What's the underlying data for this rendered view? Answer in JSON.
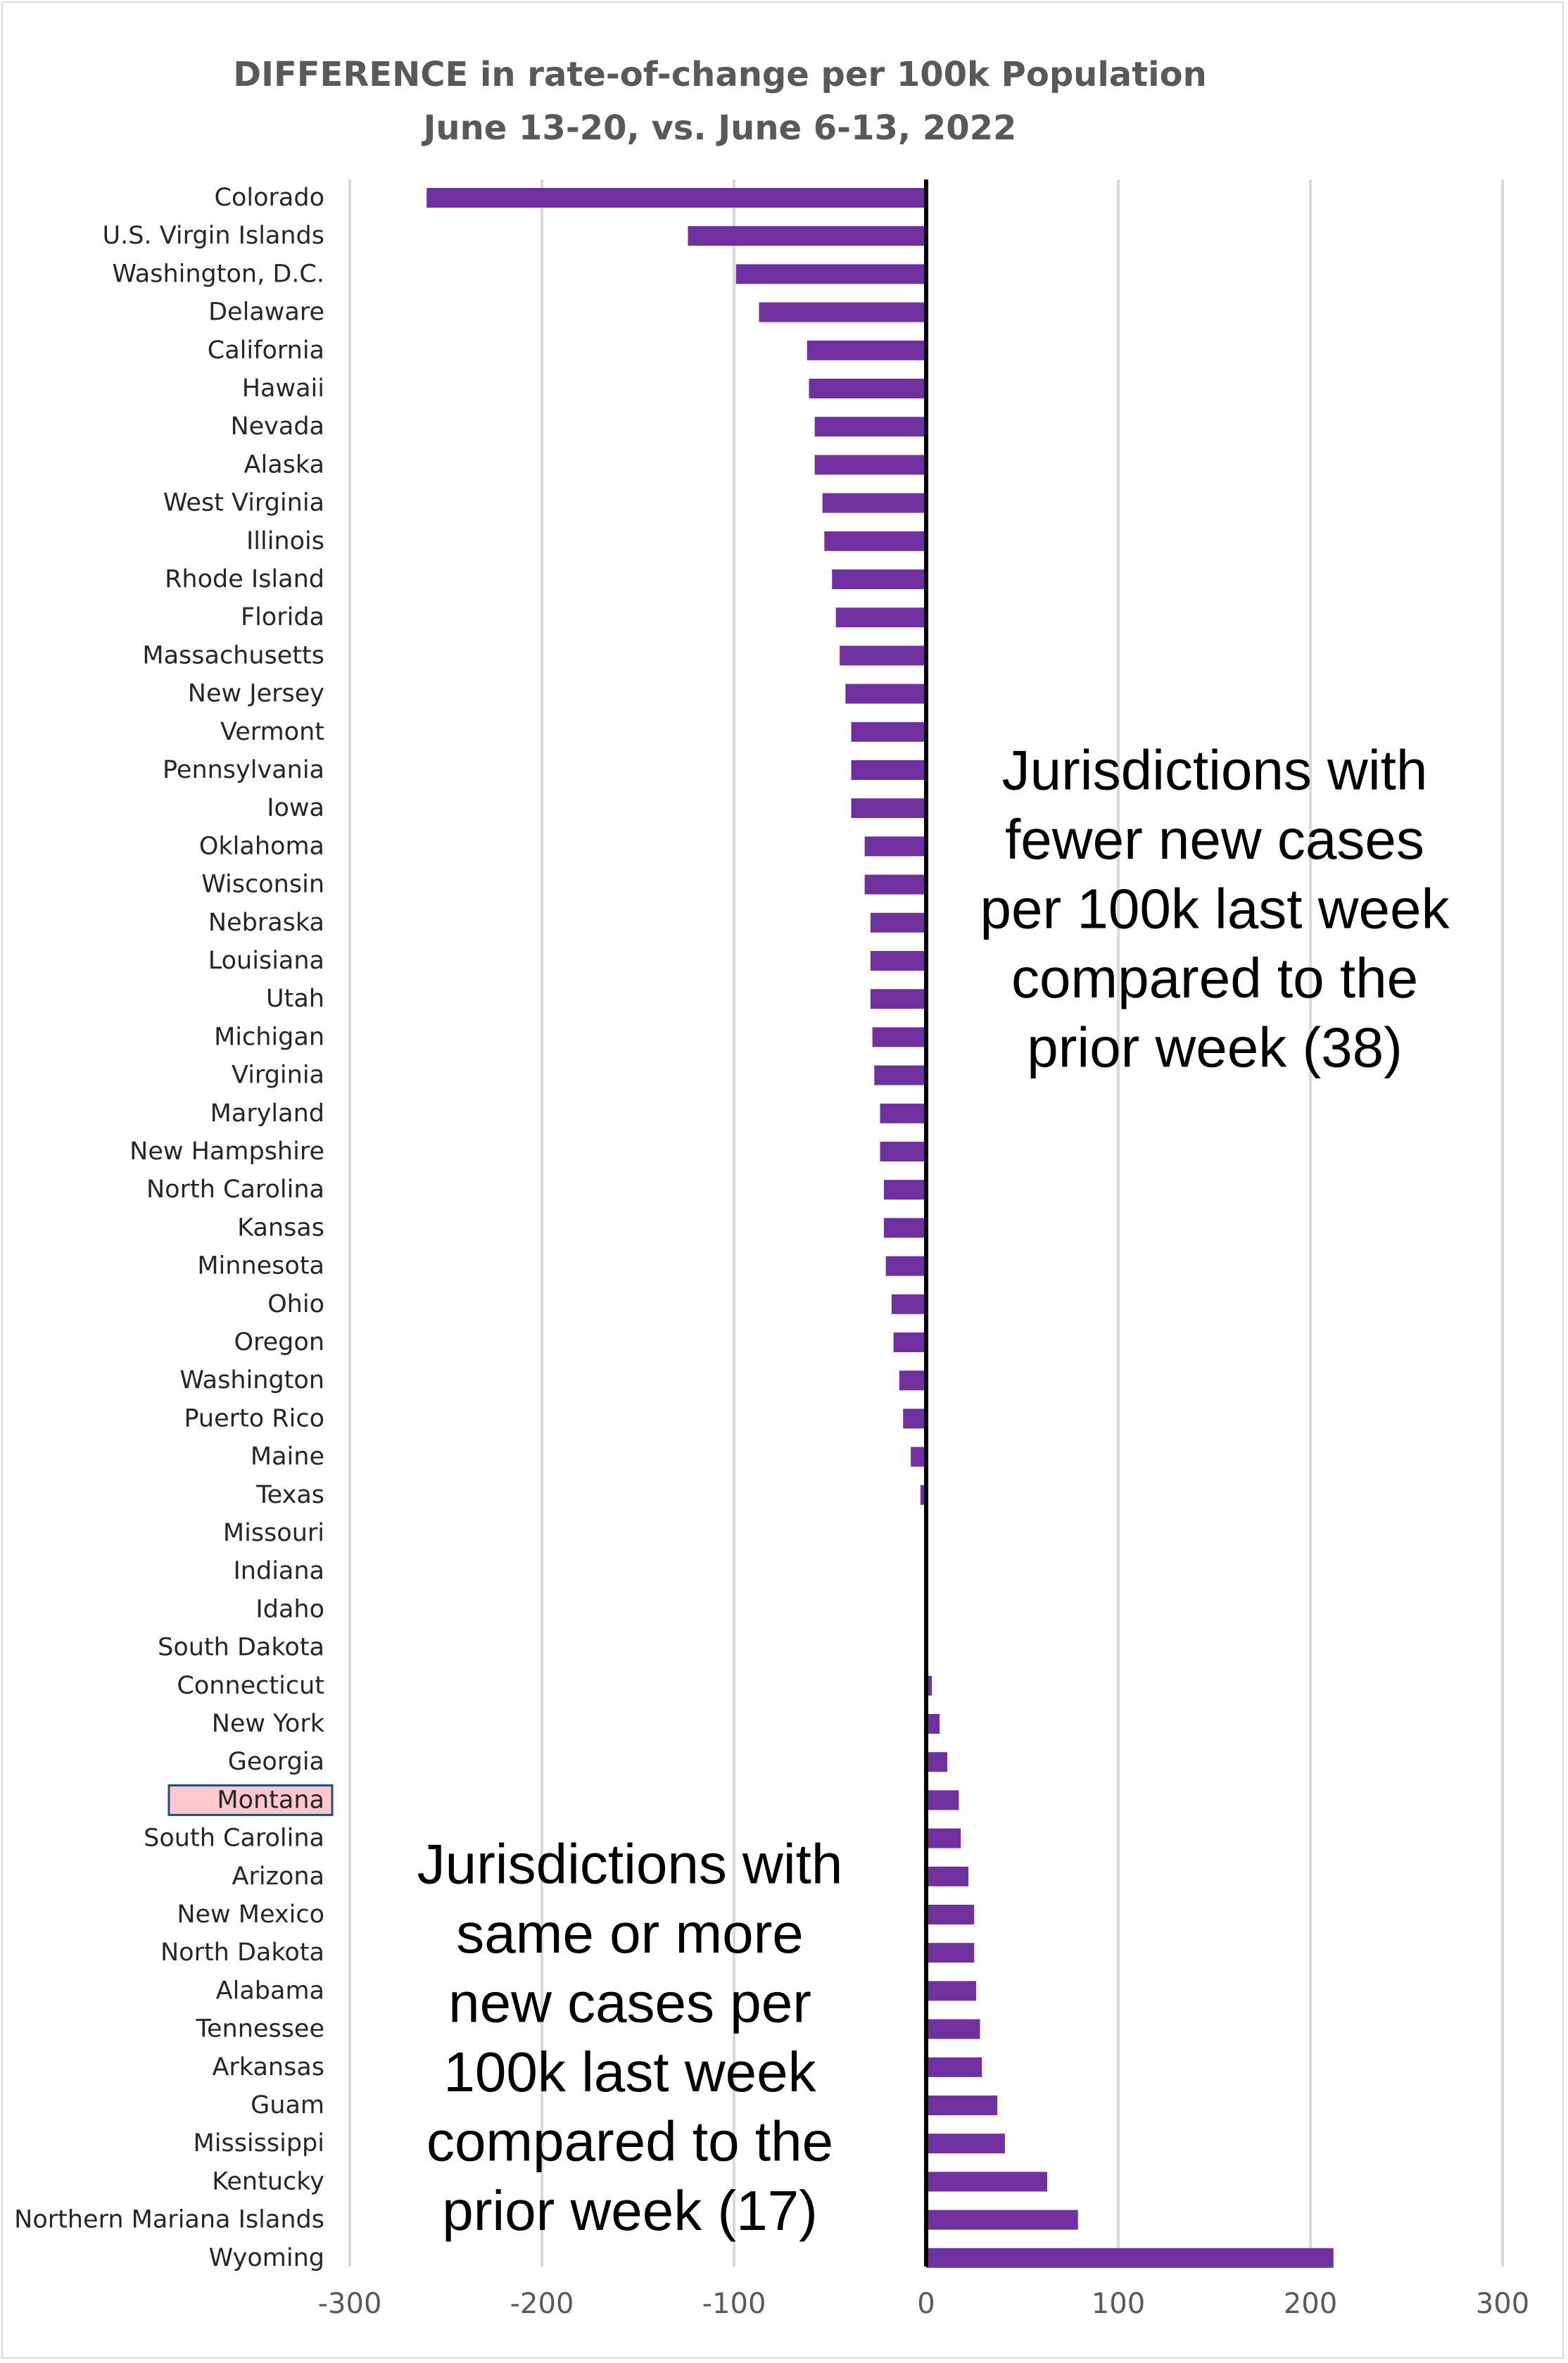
{
  "chart_data": {
    "type": "bar",
    "orientation": "horizontal",
    "title": [
      "DIFFERENCE in rate-of-change per 100k Population",
      "June 13-20, vs. June 6-13, 2022"
    ],
    "xlabel": "",
    "ylabel": "",
    "xlim": [
      -300,
      300
    ],
    "xticks": [
      -300,
      -200,
      -100,
      0,
      100,
      200,
      300
    ],
    "xtick_labels": [
      "-300",
      "-200",
      "-100",
      "0",
      "100",
      "200",
      "300"
    ],
    "grid": true,
    "bar_color": "#7030a0",
    "highlight_color": "#ffc7ce",
    "highlight_border": "#1f4e79",
    "highlighted_category": "Montana",
    "categories": [
      "Colorado",
      "U.S. Virgin Islands",
      "Washington, D.C.",
      "Delaware",
      "California",
      "Hawaii",
      "Nevada",
      "Alaska",
      "West Virginia",
      "Illinois",
      "Rhode Island",
      "Florida",
      "Massachusetts",
      "New Jersey",
      "Vermont",
      "Pennsylvania",
      "Iowa",
      "Oklahoma",
      "Wisconsin",
      "Nebraska",
      "Louisiana",
      "Utah",
      "Michigan",
      "Virginia",
      "Maryland",
      "New Hampshire",
      "North Carolina",
      "Kansas",
      "Minnesota",
      "Ohio",
      "Oregon",
      "Washington",
      "Puerto Rico",
      "Maine",
      "Texas",
      "Missouri",
      "Indiana",
      "Idaho",
      "South Dakota",
      "Connecticut",
      "New York",
      "Georgia",
      "Montana",
      "South Carolina",
      "Arizona",
      "New Mexico",
      "North Dakota",
      "Alabama",
      "Tennessee",
      "Arkansas",
      "Guam",
      "Mississippi",
      "Kentucky",
      "Northern Mariana Islands",
      "Wyoming"
    ],
    "values": [
      -260,
      -124,
      -99,
      -87,
      -62,
      -61,
      -58,
      -58,
      -54,
      -53,
      -49,
      -47,
      -45,
      -42,
      -39,
      -39,
      -39,
      -32,
      -32,
      -29,
      -29,
      -29,
      -28,
      -27,
      -24,
      -24,
      -22,
      -22,
      -21,
      -18,
      -17,
      -14,
      -12,
      -8,
      -3,
      -1,
      -1,
      -0.5,
      0,
      3,
      7,
      11,
      17,
      18,
      22,
      25,
      25,
      26,
      28,
      29,
      37,
      41,
      63,
      79,
      212
    ],
    "annotations": [
      {
        "lines": [
          "Jurisdictions with",
          "fewer new cases",
          "per 100k last week",
          "compared to the",
          "prior week (38)"
        ]
      },
      {
        "lines": [
          "Jurisdictions with",
          "same or more",
          "new cases per",
          "100k last week",
          "compared to the",
          "prior week (17)"
        ]
      }
    ]
  }
}
